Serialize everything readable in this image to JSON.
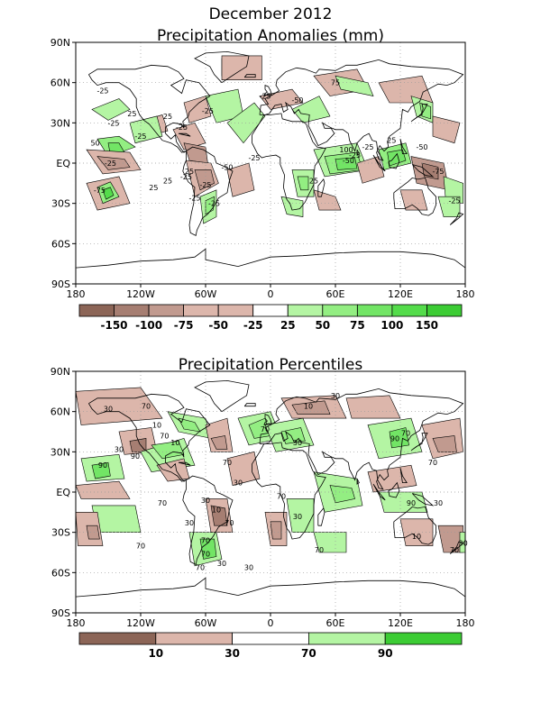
{
  "header": {
    "title": "December 2012"
  },
  "colors": {
    "dry3": "#8c6557",
    "dry2": "#a67e72",
    "dry1": "#c19a8f",
    "dry0": "#dcb6ab",
    "wet0": "#b4f5a3",
    "wet1": "#93ee82",
    "wet2": "#72e565",
    "wet3": "#54dc4b",
    "wet4": "#3ccc34",
    "neutral": "#ffffff",
    "grid": "#999999"
  },
  "map_top": {
    "title": "Precipitation Anomalies (mm)",
    "lat_labels": [
      "90N",
      "60N",
      "30N",
      "EQ",
      "30S",
      "60S",
      "90S"
    ],
    "lon_labels": [
      "180",
      "120W",
      "60W",
      "0",
      "60E",
      "120E",
      "180"
    ],
    "contour_labels": [
      "-25",
      "-25",
      "25",
      "25",
      "-25",
      "-25",
      "50",
      "-25",
      "-25",
      "25",
      "-25",
      "-25",
      "25",
      "-75",
      "25",
      "-25",
      "-25",
      "-50",
      "-25",
      "-25",
      "-50",
      "75",
      "100",
      "-50",
      "-25",
      "-25",
      "25",
      "-50",
      "-75",
      "-25",
      "25"
    ],
    "colorbar": {
      "labels": [
        "-150",
        "-100",
        "-75",
        "-50",
        "-25",
        "25",
        "50",
        "75",
        "100",
        "150"
      ]
    }
  },
  "map_bottom": {
    "title": "Precipitation Percentiles",
    "lat_labels": [
      "90N",
      "60N",
      "30N",
      "EQ",
      "30S",
      "60S",
      "90S"
    ],
    "lon_labels": [
      "180",
      "120W",
      "60W",
      "0",
      "60E",
      "120E",
      "180"
    ],
    "contour_labels": [
      "30",
      "70",
      "10",
      "30",
      "90",
      "70",
      "10",
      "70",
      "90",
      "30",
      "30",
      "70",
      "70",
      "30",
      "10",
      "70",
      "70",
      "30",
      "70",
      "30",
      "70",
      "70",
      "30",
      "90",
      "70",
      "10",
      "30",
      "70",
      "30",
      "70",
      "90",
      "70",
      "70",
      "30",
      "10",
      "30"
    ],
    "colorbar": {
      "labels": [
        "10",
        "30",
        "70",
        "90"
      ]
    }
  }
}
